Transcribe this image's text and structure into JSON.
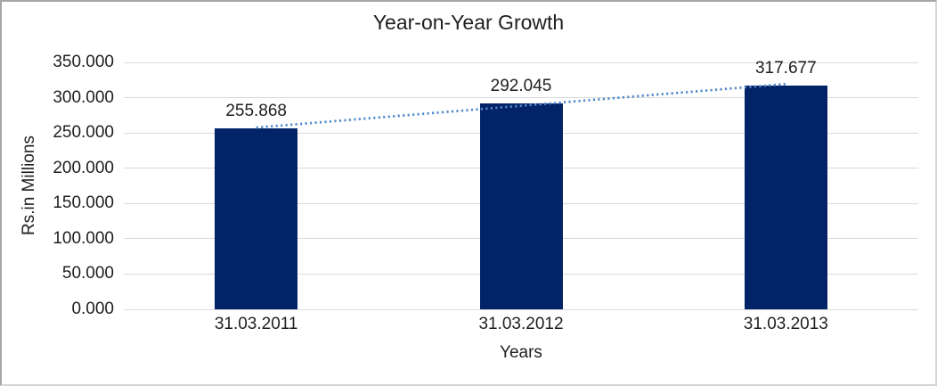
{
  "chart_data": {
    "type": "bar",
    "title": "Year-on-Year Growth",
    "xlabel": "Years",
    "ylabel": "Rs.in Millions",
    "categories": [
      "31.03.2011",
      "31.03.2012",
      "31.03.2013"
    ],
    "values": [
      255.868,
      292.045,
      317.677
    ],
    "data_labels": [
      "255.868",
      "292.045",
      "317.677"
    ],
    "ylim": [
      0,
      350
    ],
    "ytick_step": 50,
    "ytick_labels": [
      "0.000",
      "50.000",
      "100.000",
      "150.000",
      "200.000",
      "250.000",
      "300.000",
      "350.000"
    ],
    "grid": true,
    "legend": false,
    "trendline": {
      "type": "linear",
      "style": "dotted"
    },
    "colors": {
      "bar": "#022367",
      "trendline": "#5289cb",
      "gridline": "#d9d9d9",
      "text": "#1f1f1f",
      "background": "#ffffff"
    }
  }
}
